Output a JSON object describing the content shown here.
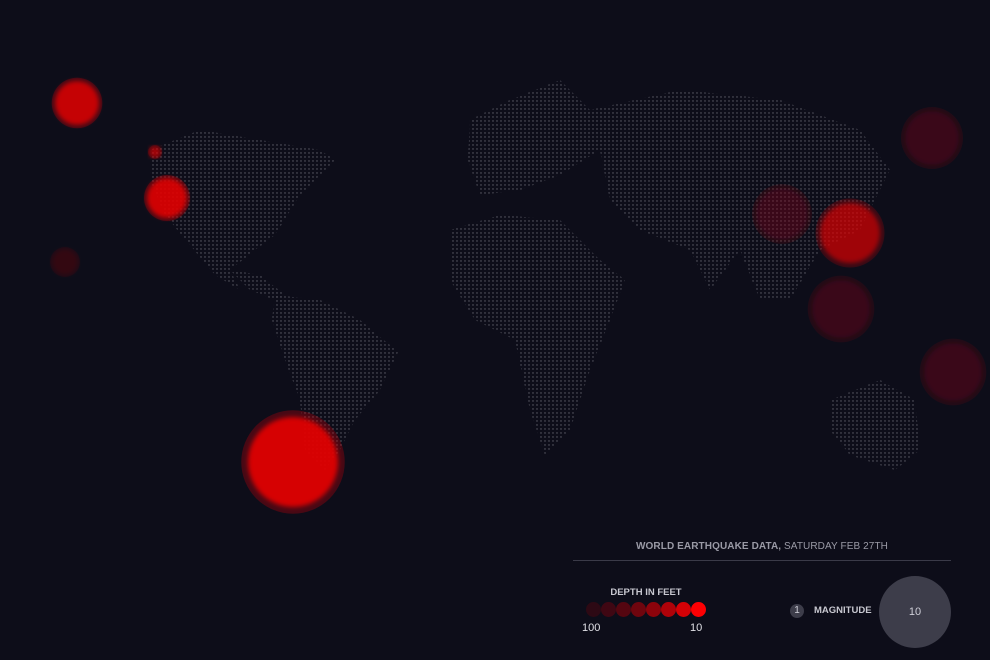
{
  "legend": {
    "title_bold": "WORLD EARTHQUAKE DATA,",
    "title_rest": " SATURDAY FEB 27TH",
    "depth_label": "DEPTH IN FEET",
    "depth_min": "100",
    "depth_max": "10",
    "magnitude_label": "MAGNITUDE",
    "magnitude_min": "1",
    "magnitude_max": "10"
  },
  "colors": {
    "background": "#0d0d19",
    "land_dots": "#c8c8d0",
    "quake_shallow": "#ff0000",
    "quake_deep": "#4a0a14",
    "magnitude_swatch": "#3d3d4a"
  }
}
